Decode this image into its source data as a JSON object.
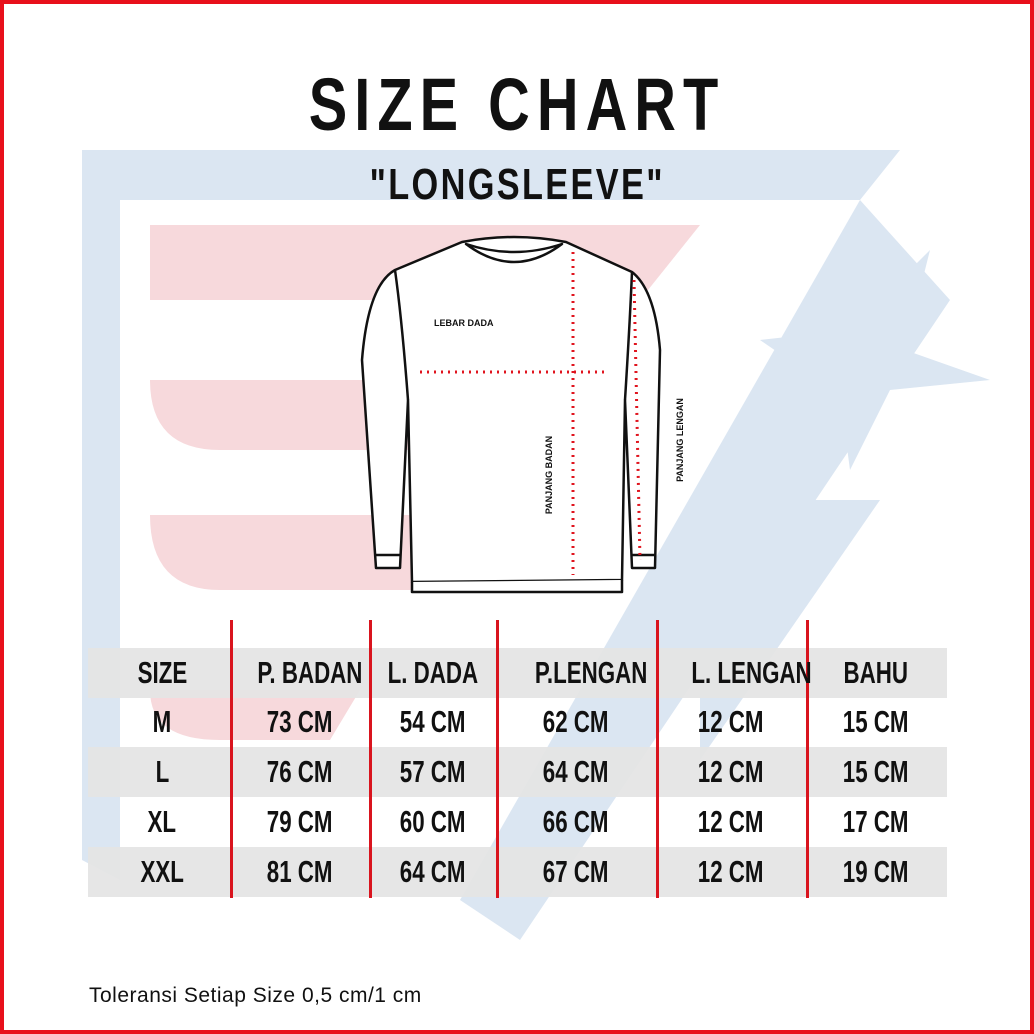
{
  "title": "SIZE CHART",
  "subtitle": "\"LONGSLEEVE\"",
  "diagram_labels": {
    "chest": "LEBAR DADA",
    "body_length": "PANJANG BADAN",
    "sleeve_length": "PANJANG LENGAN"
  },
  "colors": {
    "accent_red": "#d9141e",
    "watermark_blue": "#dbe6f2",
    "watermark_pink": "#f7d9dc",
    "row_band": "#e4e4e4"
  },
  "table": {
    "headers": [
      "SIZE",
      "P. BADAN",
      "L. DADA",
      "P.LENGAN",
      "L. LENGAN",
      "BAHU"
    ],
    "rows": [
      [
        "M",
        "73  CM",
        "54  CM",
        "62  CM",
        "12  CM",
        "15  CM"
      ],
      [
        "L",
        "76  CM",
        "57  CM",
        "64  CM",
        "12  CM",
        "15  CM"
      ],
      [
        "XL",
        "79  CM",
        "60  CM",
        "66  CM",
        "12  CM",
        "17  CM"
      ],
      [
        "XXL",
        "81  CM",
        "64  CM",
        "67  CM",
        "12  CM",
        "19  CM"
      ]
    ]
  },
  "note": "Toleransi Setiap Size 0,5 cm/1 cm"
}
